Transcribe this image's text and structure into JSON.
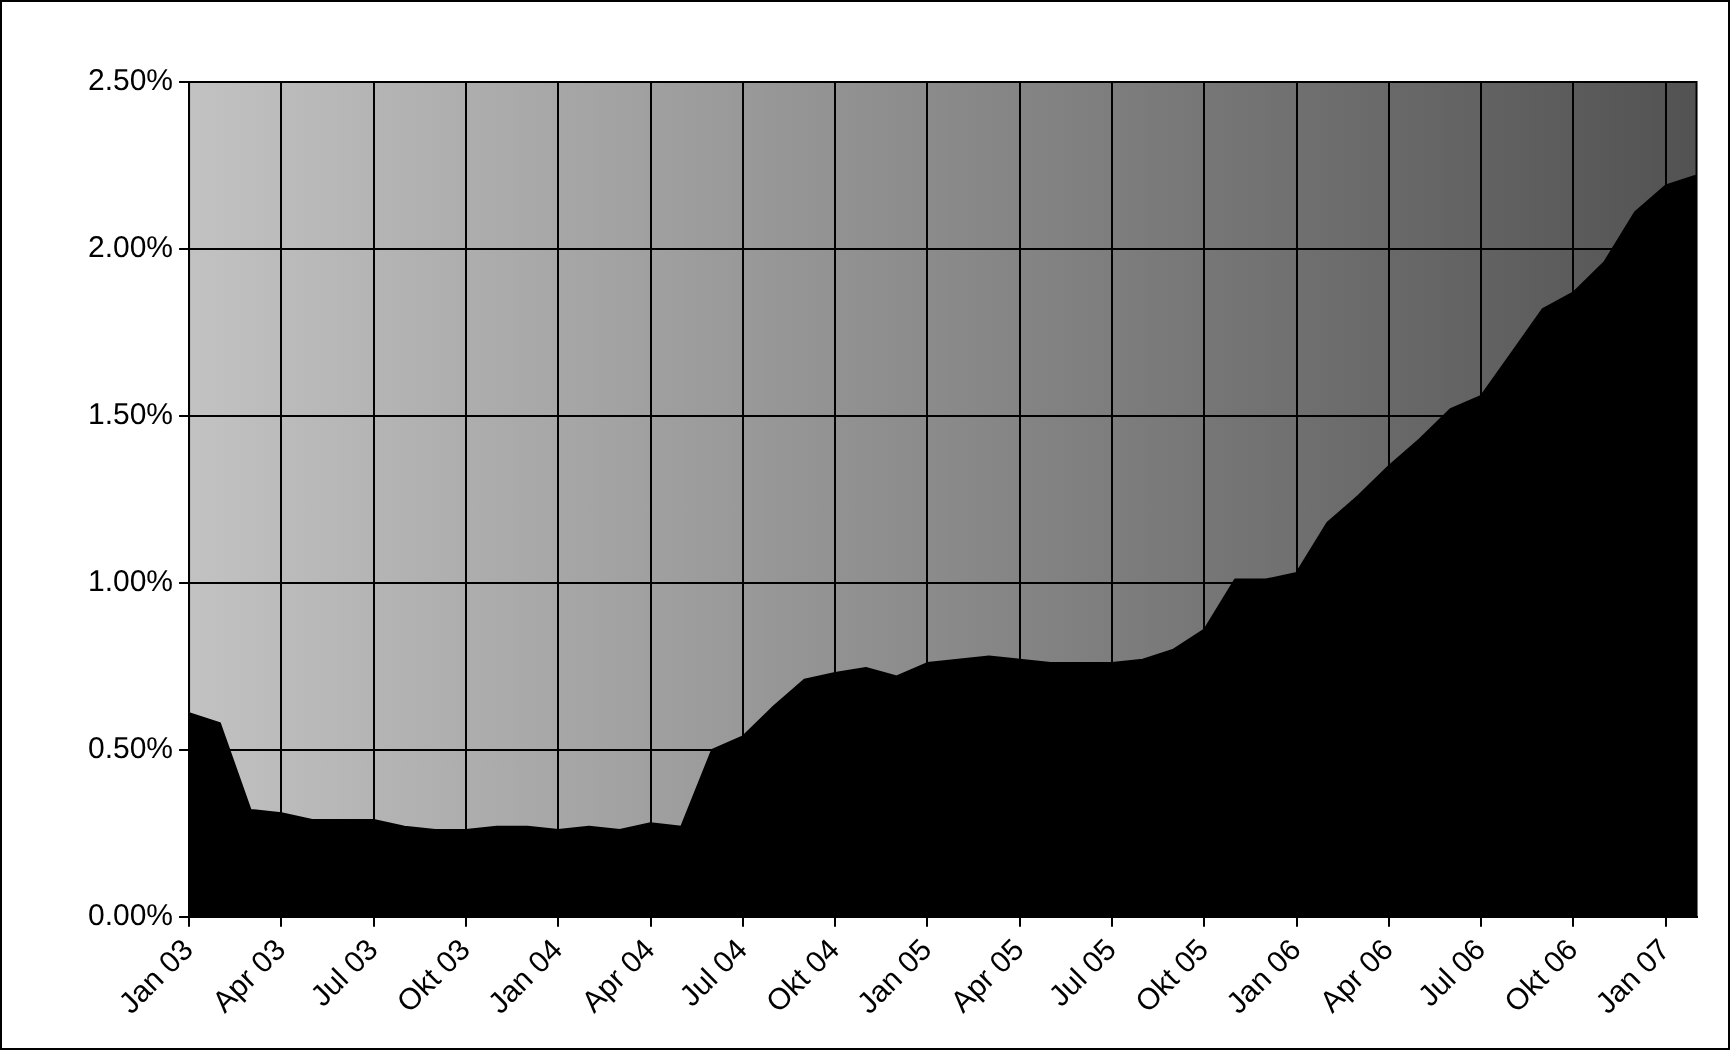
{
  "chart_data": {
    "type": "area",
    "categories": [
      "Jan 03",
      null,
      null,
      "Apr 03",
      null,
      null,
      "Jul 03",
      null,
      null,
      "Okt 03",
      null,
      null,
      "Jan 04",
      null,
      null,
      "Apr 04",
      null,
      null,
      "Jul 04",
      null,
      null,
      "Okt 04",
      null,
      null,
      "Jan 05",
      null,
      null,
      "Apr 05",
      null,
      null,
      "Jul 05",
      null,
      null,
      "Okt 05",
      null,
      null,
      "Jan 06",
      null,
      null,
      "Apr 06",
      null,
      null,
      "Jul 06",
      null,
      null,
      "Okt 06",
      null,
      null,
      "Jan 07",
      null
    ],
    "series": [
      {
        "color": "#000000",
        "values": [
          0.61,
          0.58,
          0.32,
          0.31,
          0.29,
          0.29,
          0.29,
          0.27,
          0.26,
          0.26,
          0.27,
          0.27,
          0.26,
          0.27,
          0.26,
          0.28,
          0.27,
          0.5,
          0.54,
          0.63,
          0.71,
          0.73,
          0.745,
          0.72,
          0.76,
          0.77,
          0.78,
          0.77,
          0.76,
          0.76,
          0.76,
          0.77,
          0.8,
          0.86,
          1.01,
          1.01,
          1.03,
          1.18,
          1.26,
          1.35,
          1.43,
          1.52,
          1.56,
          1.69,
          1.82,
          1.87,
          1.96,
          2.11,
          2.19,
          2.22
        ]
      }
    ],
    "ylim": [
      0,
      2.5
    ],
    "yticks": [
      {
        "value": 0,
        "label": "0.00%"
      },
      {
        "value": 0.5,
        "label": "0.50%"
      },
      {
        "value": 1,
        "label": "1.00%"
      },
      {
        "value": 1.5,
        "label": "1.50%"
      },
      {
        "value": 2,
        "label": "2.00%"
      },
      {
        "value": 2.5,
        "label": "2.50%"
      }
    ],
    "grid": true,
    "legend": false
  }
}
